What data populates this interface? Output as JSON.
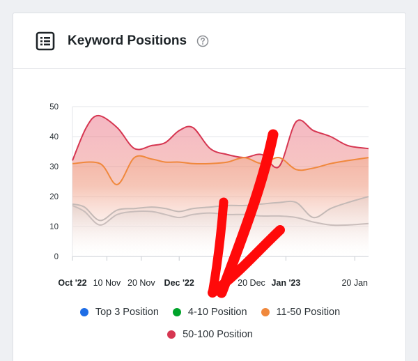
{
  "widget": {
    "title": "Keyword Positions",
    "header_icon": "list-icon",
    "help_icon": "help-circle-icon"
  },
  "chart_data": {
    "type": "area",
    "y_ticks": [
      0,
      10,
      20,
      30,
      40,
      50
    ],
    "ylim": [
      0,
      50
    ],
    "x_labels": [
      {
        "text": "Oct '22",
        "bold": true,
        "t": 0
      },
      {
        "text": "10 Nov",
        "bold": false,
        "t": 1
      },
      {
        "text": "20 Nov",
        "bold": false,
        "t": 2
      },
      {
        "text": "Dec '22",
        "bold": true,
        "t": 3.1
      },
      {
        "text": "20 Dec",
        "bold": false,
        "t": 5.2
      },
      {
        "text": "Jan '23",
        "bold": true,
        "t": 6.2
      },
      {
        "text": "20 Jan",
        "bold": false,
        "t": 8.2
      }
    ],
    "t_range": [
      0,
      8.6
    ],
    "grid": true,
    "legend": "bottom",
    "series": [
      {
        "name": "Top 3 Position",
        "color": "#1e6de6",
        "points": [
          [
            0,
            17
          ],
          [
            0.35,
            15
          ],
          [
            0.8,
            10.5
          ],
          [
            1.3,
            14
          ],
          [
            1.8,
            15
          ],
          [
            2.3,
            15
          ],
          [
            2.7,
            14
          ],
          [
            3.1,
            13
          ],
          [
            3.5,
            14
          ],
          [
            4,
            14.5
          ],
          [
            4.5,
            14
          ],
          [
            5,
            14
          ],
          [
            5.5,
            13.5
          ],
          [
            6,
            13.5
          ],
          [
            6.5,
            13
          ],
          [
            7,
            11.5
          ],
          [
            7.5,
            10.5
          ],
          [
            8,
            10.5
          ],
          [
            8.6,
            11
          ]
        ]
      },
      {
        "name": "4-10 Position",
        "color": "#00a32a",
        "points": [
          [
            0,
            17.5
          ],
          [
            0.35,
            16.5
          ],
          [
            0.8,
            12
          ],
          [
            1.3,
            15.5
          ],
          [
            1.8,
            16
          ],
          [
            2.3,
            16.5
          ],
          [
            2.7,
            16
          ],
          [
            3.1,
            15
          ],
          [
            3.5,
            16
          ],
          [
            4,
            16.5
          ],
          [
            4.5,
            17
          ],
          [
            5,
            17
          ],
          [
            5.5,
            17.5
          ],
          [
            6,
            18
          ],
          [
            6.5,
            18
          ],
          [
            7,
            13
          ],
          [
            7.5,
            16
          ],
          [
            8,
            18
          ],
          [
            8.6,
            20
          ]
        ]
      },
      {
        "name": "11-50 Position",
        "color": "#f0883c",
        "points": [
          [
            0,
            31
          ],
          [
            0.8,
            31
          ],
          [
            1.3,
            24
          ],
          [
            1.8,
            33
          ],
          [
            2.3,
            32.5
          ],
          [
            2.7,
            31.5
          ],
          [
            3.1,
            31.5
          ],
          [
            3.5,
            31
          ],
          [
            4,
            31
          ],
          [
            4.5,
            31.5
          ],
          [
            5,
            33
          ],
          [
            5.5,
            31
          ],
          [
            6,
            33
          ],
          [
            6.5,
            29
          ],
          [
            7,
            29.5
          ],
          [
            7.5,
            31
          ],
          [
            8,
            32
          ],
          [
            8.6,
            33
          ]
        ]
      },
      {
        "name": "50-100 Position",
        "color": "#d63651",
        "points": [
          [
            0,
            32
          ],
          [
            0.4,
            43
          ],
          [
            0.75,
            47
          ],
          [
            1.3,
            43
          ],
          [
            1.8,
            36
          ],
          [
            2.3,
            37
          ],
          [
            2.7,
            38
          ],
          [
            3.1,
            42
          ],
          [
            3.5,
            43
          ],
          [
            4,
            36
          ],
          [
            4.5,
            34
          ],
          [
            5,
            33
          ],
          [
            5.5,
            34
          ],
          [
            6,
            30
          ],
          [
            6.5,
            45
          ],
          [
            7,
            42
          ],
          [
            7.5,
            40
          ],
          [
            8,
            37
          ],
          [
            8.6,
            36
          ]
        ]
      }
    ]
  }
}
